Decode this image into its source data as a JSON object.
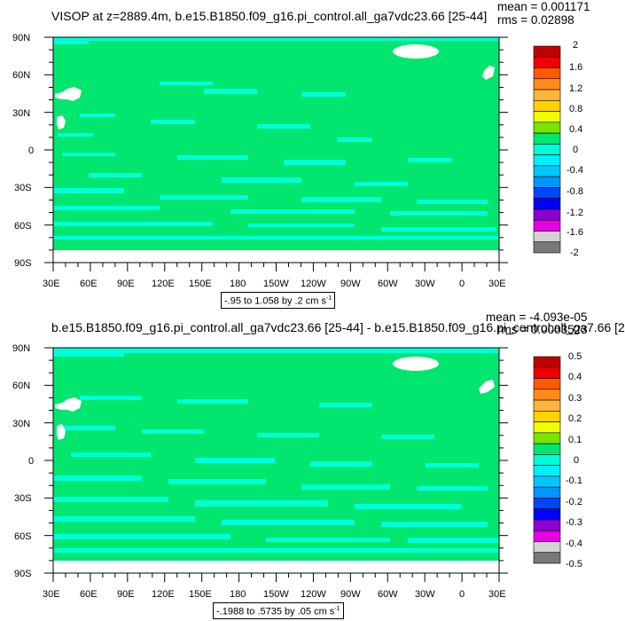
{
  "colors": {
    "field_zero": "#00e66e",
    "field_neg": "#00ffd9",
    "land_mask": "#ffffff"
  },
  "panels": [
    {
      "title": "VISOP at z=2889.4m, b.e15.B1850.f09_g16.pi_control.all_ga7vdc23.66 [25-44]",
      "mean": "mean = 0.001171",
      "rms": "rms = 0.02898",
      "info_text": "-.95 to 1.058 by .2 cm s",
      "info_unit_sup": "-1",
      "lat_labels": [
        "90N",
        "60N",
        "30N",
        "0",
        "30S",
        "60S",
        "90S"
      ],
      "lon_labels": [
        "30E",
        "60E",
        "90E",
        "120E",
        "150E",
        "180",
        "150W",
        "120W",
        "90W",
        "60W",
        "30W",
        "0",
        "30E"
      ],
      "colorbar_labels": [
        "2",
        "1.6",
        "1.2",
        "0.8",
        "0.4",
        "0",
        "-0.4",
        "-0.8",
        "-1.2",
        "-1.6",
        "-2"
      ]
    },
    {
      "title": "b.e15.B1850.f09_g16.pi_control.all_ga7vdc23.66 [25-44] - b.e15.B1850.f09_g16.pi_control.all_ga7.66 [2",
      "mean": "mean = -4.093e-05",
      "rms": "rms = 0.0003523",
      "info_text": "-.1988 to .5735 by .05 cm s",
      "info_unit_sup": "-1",
      "lat_labels": [
        "90N",
        "60N",
        "30N",
        "0",
        "30S",
        "60S",
        "90S"
      ],
      "lon_labels": [
        "30E",
        "60E",
        "90E",
        "120E",
        "150E",
        "180",
        "150W",
        "120W",
        "90W",
        "60W",
        "30W",
        "0",
        "30E"
      ],
      "colorbar_labels": [
        "0.5",
        "0.4",
        "0.3",
        "0.2",
        "0.1",
        "0",
        "-0.1",
        "-0.2",
        "-0.3",
        "-0.4",
        "-0.5"
      ]
    }
  ],
  "colorbar_colors": [
    "#c00000",
    "#f00000",
    "#ff5a00",
    "#ff8c1a",
    "#ffb43c",
    "#ffd200",
    "#f0ff00",
    "#78e600",
    "#00e66e",
    "#00ffd9",
    "#00f0ff",
    "#00c8ff",
    "#0096ff",
    "#0046ff",
    "#0000ff",
    "#8c00d2",
    "#e600e6",
    "#d2d2d2",
    "#787878"
  ]
}
